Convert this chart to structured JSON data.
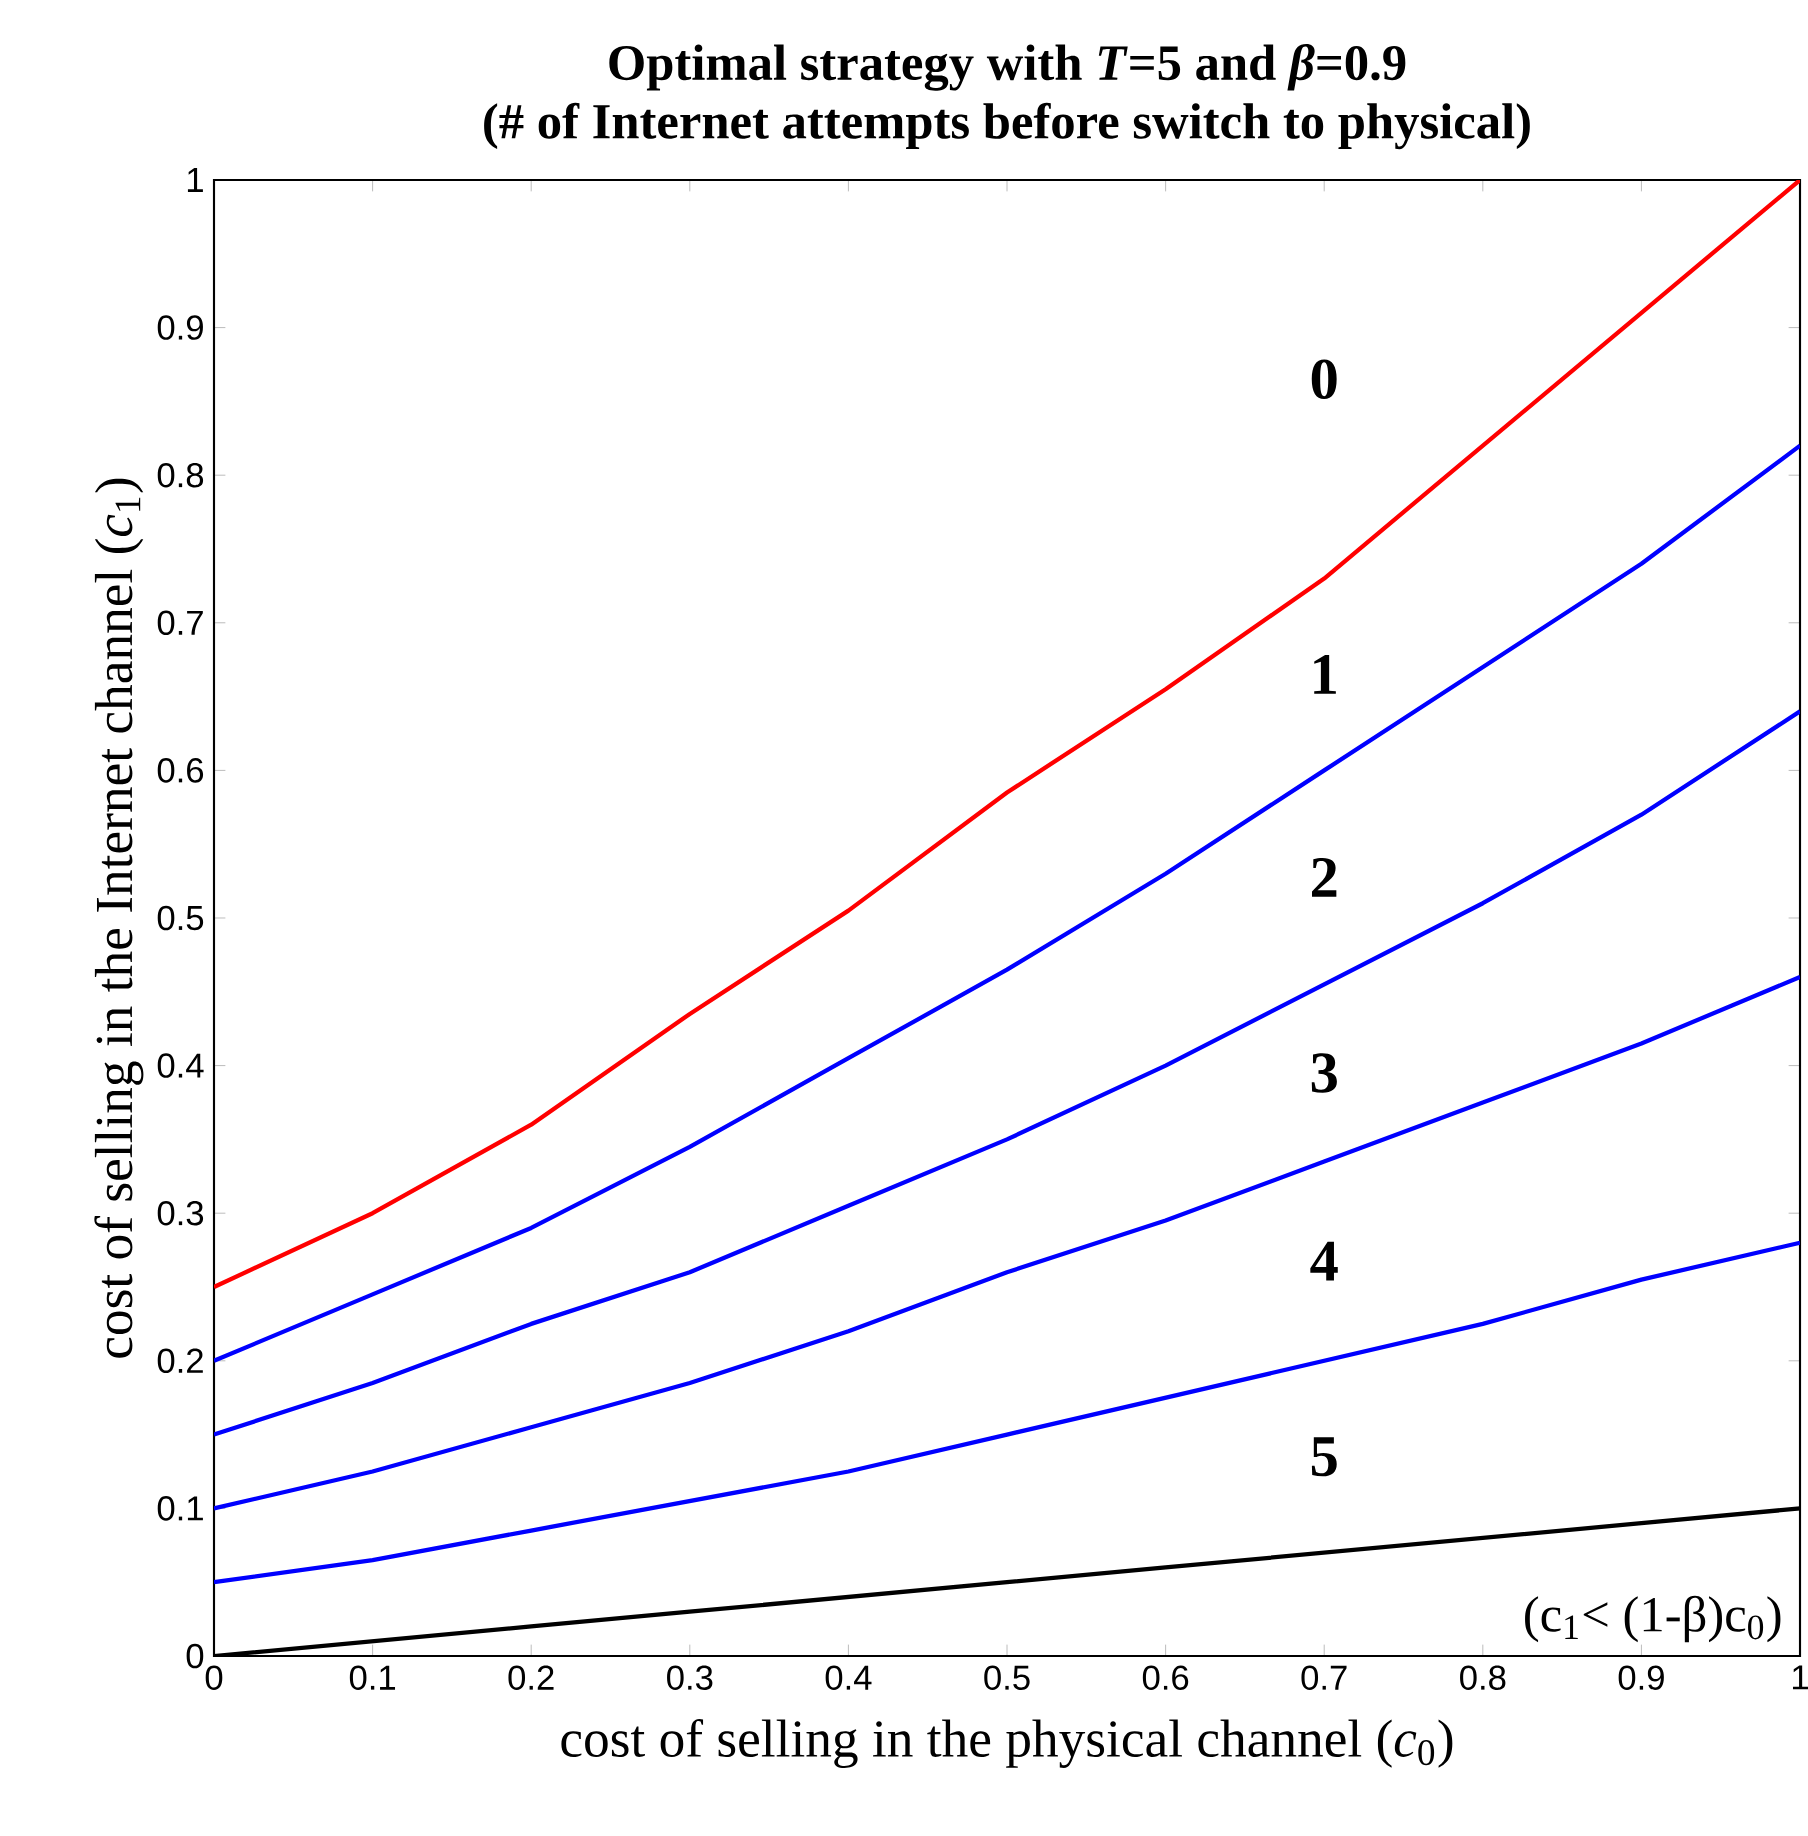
{
  "chart_data": {
    "type": "line",
    "title": "Optimal strategy with *T*=5 and *β*=0.9",
    "subtitle": "(# of Internet attempts before switch to physical)",
    "xlabel": "cost of selling in the physical channel (*c*$_{0}$)",
    "ylabel": "cost of selling in the Internet channel (*c*$_{1}$)",
    "x": [
      0,
      0.1,
      0.2,
      0.3,
      0.4,
      0.5,
      0.6,
      0.7,
      0.8,
      0.9,
      1
    ],
    "series": [
      {
        "color": "#ff0000",
        "values": [
          0.25,
          0.3,
          0.36,
          0.435,
          0.505,
          0.585,
          0.655,
          0.73,
          0.82,
          0.91,
          1.0
        ]
      },
      {
        "color": "#0000ff",
        "values": [
          0.2,
          0.245,
          0.29,
          0.345,
          0.405,
          0.465,
          0.53,
          0.6,
          0.67,
          0.74,
          0.82
        ]
      },
      {
        "color": "#0000ff",
        "values": [
          0.15,
          0.185,
          0.225,
          0.26,
          0.305,
          0.35,
          0.4,
          0.455,
          0.51,
          0.57,
          0.64
        ]
      },
      {
        "color": "#0000ff",
        "values": [
          0.1,
          0.125,
          0.155,
          0.185,
          0.22,
          0.26,
          0.295,
          0.335,
          0.375,
          0.415,
          0.46
        ]
      },
      {
        "color": "#0000ff",
        "values": [
          0.05,
          0.065,
          0.085,
          0.105,
          0.125,
          0.15,
          0.175,
          0.2,
          0.225,
          0.255,
          0.28
        ]
      },
      {
        "color": "#000000",
        "values": [
          0,
          0.01,
          0.02,
          0.03,
          0.04,
          0.05,
          0.06,
          0.07,
          0.08,
          0.09,
          0.1
        ]
      }
    ],
    "xlim": [
      0,
      1
    ],
    "ylim": [
      0,
      1
    ],
    "xticks": [
      0,
      0.1,
      0.2,
      0.3,
      0.4,
      0.5,
      0.6,
      0.7,
      0.8,
      0.9,
      1
    ],
    "yticks": [
      0,
      0.1,
      0.2,
      0.3,
      0.4,
      0.5,
      0.6,
      0.7,
      0.8,
      0.9,
      1
    ],
    "grid": false,
    "marker": "none",
    "line_style": "solid",
    "annotations": [
      "0",
      "1",
      "2",
      "3",
      "4",
      "5",
      "(c$_{1}$< (1-β)c$_{0}$)"
    ]
  }
}
